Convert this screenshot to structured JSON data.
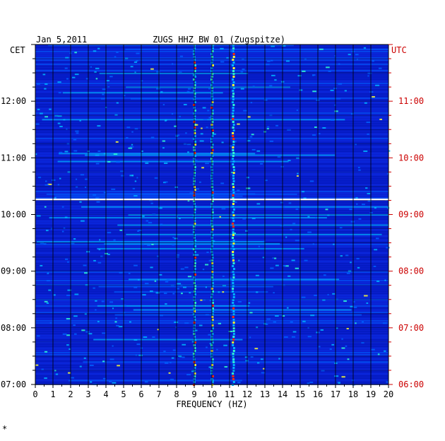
{
  "chart_data": {
    "type": "heatmap",
    "title": "ZUGS HHZ BW 01 (Zugspitze)",
    "date": "Jan 5,2011",
    "xlabel": "FREQUENCY (HZ)",
    "xlim": [
      0,
      20
    ],
    "x_ticks": [
      "0",
      "1",
      "2",
      "3",
      "4",
      "5",
      "6",
      "7",
      "8",
      "9",
      "10",
      "11",
      "12",
      "13",
      "14",
      "15",
      "16",
      "17",
      "18",
      "19",
      "20"
    ],
    "left_axis": {
      "label": "CET",
      "ticks": [
        "07:00",
        "08:00",
        "09:00",
        "10:00",
        "11:00",
        "12:00"
      ],
      "color": "#000000"
    },
    "right_axis": {
      "label": "UTC",
      "ticks": [
        "06:00",
        "07:00",
        "08:00",
        "09:00",
        "10:00",
        "11:00"
      ],
      "color": "#cc0000"
    },
    "ylim_cet_hours": [
      7.0,
      13.0
    ],
    "data_gap_cet_hours": [
      10.25,
      10.28
    ],
    "background_color": "#0a1fd0",
    "dominant_frequencies_hz": [
      9.0,
      10.0,
      11.2
    ],
    "colormap": [
      "#0018b8",
      "#0a2be0",
      "#0060ff",
      "#00b4ff",
      "#30ffd0",
      "#ffff30",
      "#ff3000"
    ]
  }
}
